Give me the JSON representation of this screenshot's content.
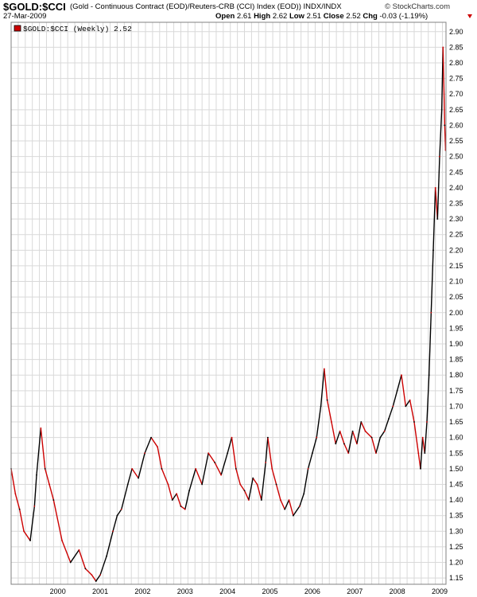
{
  "header": {
    "symbol": "$GOLD:$CCI",
    "description": "(Gold - Continuous Contract (EOD)/Reuters-CRB (CCI) Index (EOD))  INDX/INDX",
    "date": "27-Mar-2009",
    "brand": "© StockCharts.com",
    "ohlc": [
      {
        "label": "Open",
        "value": "2.61"
      },
      {
        "label": "High",
        "value": "2.62"
      },
      {
        "label": "Low",
        "value": "2.51"
      },
      {
        "label": "Close",
        "value": "2.52"
      },
      {
        "label": "Chg",
        "value": "-0.03 (-1.19%)"
      }
    ]
  },
  "legend": {
    "text": "$GOLD:$CCI (Weekly) 2.52"
  },
  "colors": {
    "up": "#000000",
    "down": "#cc0000",
    "grid": "#d9d9d9",
    "frame": "#808080"
  },
  "chart_data": {
    "type": "line",
    "title": "$GOLD:$CCI",
    "series": [
      {
        "name": "$GOLD:$CCI (Weekly)",
        "points": [
          [
            1999.0,
            1.5
          ],
          [
            1999.1,
            1.42
          ],
          [
            1999.2,
            1.37
          ],
          [
            1999.3,
            1.3
          ],
          [
            1999.45,
            1.27
          ],
          [
            1999.55,
            1.38
          ],
          [
            1999.6,
            1.48
          ],
          [
            1999.7,
            1.63
          ],
          [
            1999.8,
            1.5
          ],
          [
            1999.9,
            1.45
          ],
          [
            2000.0,
            1.4
          ],
          [
            2000.2,
            1.27
          ],
          [
            2000.4,
            1.2
          ],
          [
            2000.6,
            1.24
          ],
          [
            2000.75,
            1.18
          ],
          [
            2000.9,
            1.16
          ],
          [
            2001.0,
            1.14
          ],
          [
            2001.1,
            1.16
          ],
          [
            2001.25,
            1.22
          ],
          [
            2001.4,
            1.3
          ],
          [
            2001.5,
            1.35
          ],
          [
            2001.6,
            1.37
          ],
          [
            2001.75,
            1.45
          ],
          [
            2001.85,
            1.5
          ],
          [
            2002.0,
            1.47
          ],
          [
            2002.15,
            1.55
          ],
          [
            2002.3,
            1.6
          ],
          [
            2002.45,
            1.57
          ],
          [
            2002.55,
            1.5
          ],
          [
            2002.7,
            1.45
          ],
          [
            2002.8,
            1.4
          ],
          [
            2002.9,
            1.42
          ],
          [
            2003.0,
            1.38
          ],
          [
            2003.1,
            1.37
          ],
          [
            2003.2,
            1.43
          ],
          [
            2003.35,
            1.5
          ],
          [
            2003.5,
            1.45
          ],
          [
            2003.65,
            1.55
          ],
          [
            2003.8,
            1.52
          ],
          [
            2003.95,
            1.48
          ],
          [
            2004.1,
            1.55
          ],
          [
            2004.2,
            1.6
          ],
          [
            2004.3,
            1.5
          ],
          [
            2004.4,
            1.45
          ],
          [
            2004.5,
            1.43
          ],
          [
            2004.6,
            1.4
          ],
          [
            2004.7,
            1.47
          ],
          [
            2004.8,
            1.45
          ],
          [
            2004.9,
            1.4
          ],
          [
            2005.0,
            1.52
          ],
          [
            2005.05,
            1.6
          ],
          [
            2005.15,
            1.5
          ],
          [
            2005.25,
            1.45
          ],
          [
            2005.35,
            1.4
          ],
          [
            2005.45,
            1.37
          ],
          [
            2005.55,
            1.4
          ],
          [
            2005.65,
            1.35
          ],
          [
            2005.8,
            1.38
          ],
          [
            2005.9,
            1.42
          ],
          [
            2006.0,
            1.5
          ],
          [
            2006.1,
            1.55
          ],
          [
            2006.2,
            1.6
          ],
          [
            2006.3,
            1.7
          ],
          [
            2006.38,
            1.82
          ],
          [
            2006.45,
            1.72
          ],
          [
            2006.55,
            1.65
          ],
          [
            2006.65,
            1.58
          ],
          [
            2006.75,
            1.62
          ],
          [
            2006.85,
            1.58
          ],
          [
            2006.95,
            1.55
          ],
          [
            2007.05,
            1.62
          ],
          [
            2007.15,
            1.58
          ],
          [
            2007.25,
            1.65
          ],
          [
            2007.35,
            1.62
          ],
          [
            2007.5,
            1.6
          ],
          [
            2007.6,
            1.55
          ],
          [
            2007.7,
            1.6
          ],
          [
            2007.8,
            1.62
          ],
          [
            2007.9,
            1.66
          ],
          [
            2008.0,
            1.7
          ],
          [
            2008.1,
            1.75
          ],
          [
            2008.2,
            1.8
          ],
          [
            2008.3,
            1.7
          ],
          [
            2008.4,
            1.72
          ],
          [
            2008.5,
            1.65
          ],
          [
            2008.6,
            1.55
          ],
          [
            2008.65,
            1.5
          ],
          [
            2008.7,
            1.6
          ],
          [
            2008.75,
            1.55
          ],
          [
            2008.8,
            1.65
          ],
          [
            2008.85,
            1.8
          ],
          [
            2008.9,
            2.0
          ],
          [
            2008.95,
            2.2
          ],
          [
            2009.0,
            2.4
          ],
          [
            2009.05,
            2.3
          ],
          [
            2009.1,
            2.5
          ],
          [
            2009.15,
            2.65
          ],
          [
            2009.18,
            2.85
          ],
          [
            2009.22,
            2.6
          ],
          [
            2009.24,
            2.52
          ]
        ]
      }
    ],
    "xlim": [
      1999.0,
      2009.25
    ],
    "ylim": [
      1.13,
      2.93
    ],
    "x_ticks": [
      {
        "value": 2000.0,
        "label": "2000"
      },
      {
        "value": 2001.0,
        "label": "2001"
      },
      {
        "value": 2002.0,
        "label": "2002"
      },
      {
        "value": 2003.0,
        "label": "2003"
      },
      {
        "value": 2004.0,
        "label": "2004"
      },
      {
        "value": 2005.0,
        "label": "2005"
      },
      {
        "value": 2006.0,
        "label": "2006"
      },
      {
        "value": 2007.0,
        "label": "2007"
      },
      {
        "value": 2008.0,
        "label": "2008"
      },
      {
        "value": 2009.0,
        "label": "2009"
      }
    ],
    "y_ticks": [
      "1.15",
      "1.20",
      "1.25",
      "1.30",
      "1.35",
      "1.40",
      "1.45",
      "1.50",
      "1.55",
      "1.60",
      "1.65",
      "1.70",
      "1.75",
      "1.80",
      "1.85",
      "1.90",
      "1.95",
      "2.00",
      "2.05",
      "2.10",
      "2.15",
      "2.20",
      "2.25",
      "2.30",
      "2.35",
      "2.40",
      "2.45",
      "2.50",
      "2.55",
      "2.60",
      "2.65",
      "2.70",
      "2.75",
      "2.80",
      "2.85",
      "2.90"
    ],
    "grid": true
  }
}
